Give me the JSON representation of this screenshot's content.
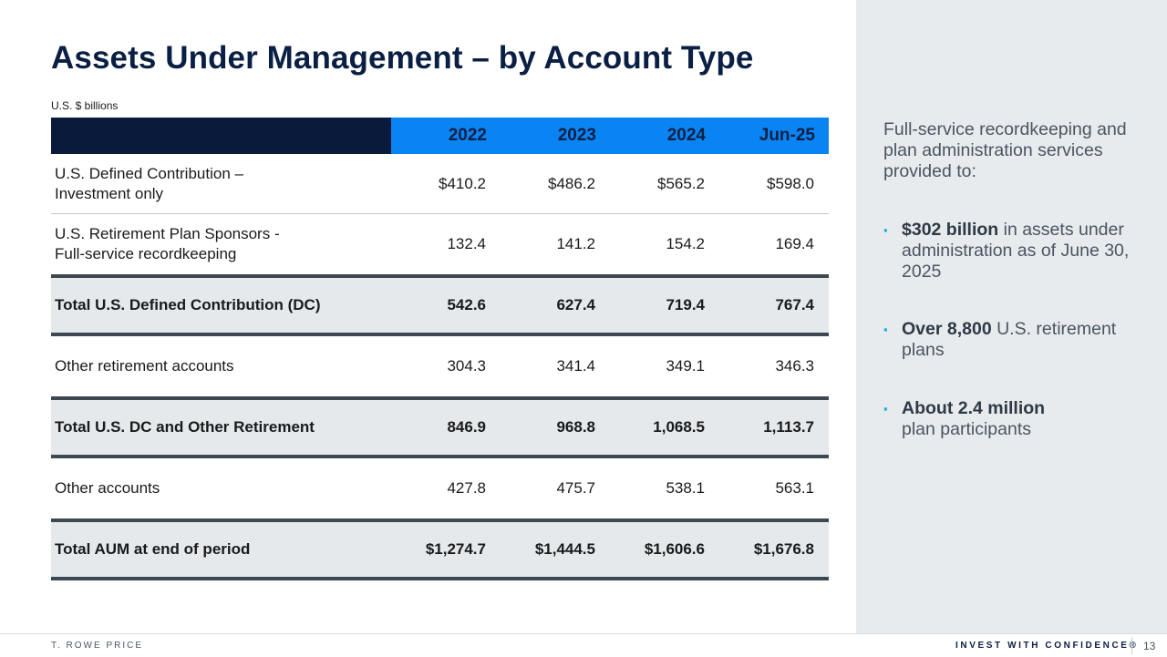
{
  "title": "Assets Under Management – by Account Type",
  "units": "U.S. $ billions",
  "table": {
    "headers": [
      "2022",
      "2023",
      "2024",
      "Jun-25"
    ],
    "rows": [
      {
        "label": [
          "U.S. Defined Contribution –",
          "Investment only"
        ],
        "values": [
          "$410.2",
          "$486.2",
          "$565.2",
          "$598.0"
        ],
        "total": false
      },
      {
        "label": [
          "U.S. Retirement Plan Sponsors -",
          "Full-service recordkeeping"
        ],
        "values": [
          "132.4",
          "141.2",
          "154.2",
          "169.4"
        ],
        "total": false
      },
      {
        "label": [
          "Total U.S. Defined Contribution (DC)"
        ],
        "values": [
          "542.6",
          "627.4",
          "719.4",
          "767.4"
        ],
        "total": true
      },
      {
        "label": [
          "Other retirement accounts"
        ],
        "values": [
          "304.3",
          "341.4",
          "349.1",
          "346.3"
        ],
        "total": false
      },
      {
        "label": [
          "Total U.S. DC and Other Retirement"
        ],
        "values": [
          "846.9",
          "968.8",
          "1,068.5",
          "1,113.7"
        ],
        "total": true
      },
      {
        "label": [
          "Other accounts"
        ],
        "values": [
          "427.8",
          "475.7",
          "538.1",
          "563.1"
        ],
        "total": false
      },
      {
        "label": [
          "Total AUM at end of period"
        ],
        "values": [
          "$1,274.7",
          "$1,444.5",
          "$1,606.6",
          "$1,676.8"
        ],
        "total": true
      }
    ]
  },
  "sidebar": {
    "intro": "Full-service recordkeeping and plan administration services provided to:",
    "bullets": [
      {
        "bold": "$302 billion",
        "text": " in assets under administration as of June 30, 2025"
      },
      {
        "bold": "Over 8,800",
        "text": " U.S. retirement plans"
      },
      {
        "bold": "About 2.4 million",
        "text": " plan participants"
      }
    ]
  },
  "footer": {
    "brand": "T. ROWE PRICE",
    "tagline": "INVEST WITH CONFIDENCE®",
    "page": "13"
  },
  "colors": {
    "navy": "#0a1f44",
    "header_blue": "#0b84f3",
    "header_dark": "#0a1a3a",
    "total_row_bg": "#e5e9ec",
    "sidebar_bg": "#e8ebee",
    "bullet_accent": "#1ab0e6"
  }
}
